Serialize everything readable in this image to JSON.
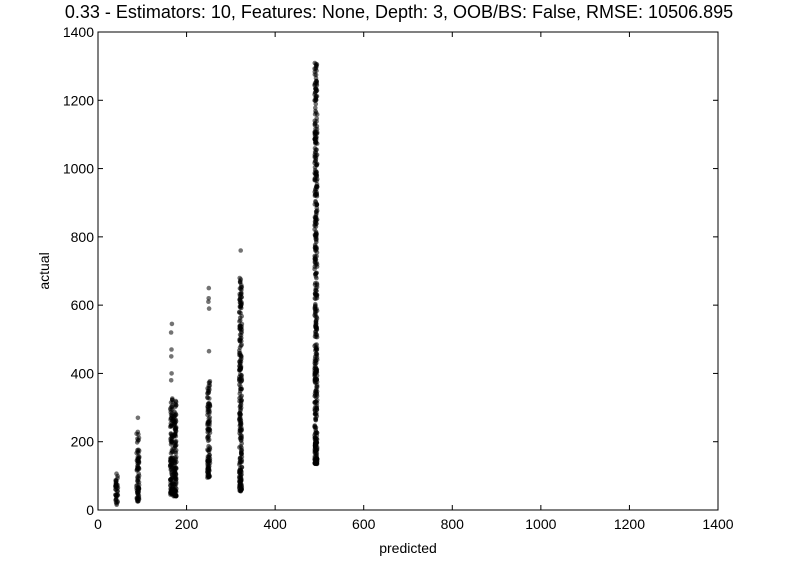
{
  "chart_data": {
    "type": "scatter",
    "title": "0.33 - Estimators: 10, Features: None, Depth: 3, OOB/BS: False, RMSE: 10506.895",
    "xlabel": "predicted",
    "ylabel": "actual",
    "xlim": [
      0,
      1400
    ],
    "ylim": [
      0,
      1400
    ],
    "x_ticks": [
      0,
      200,
      400,
      600,
      800,
      1000,
      1200,
      1400
    ],
    "y_ticks": [
      0,
      200,
      400,
      600,
      800,
      1000,
      1200,
      1400
    ],
    "grid": false,
    "marker_color": "#000000",
    "clusters": [
      {
        "x": 42,
        "y_min": 15,
        "y_max": 110,
        "outliers": []
      },
      {
        "x": 90,
        "y_min": 25,
        "y_max": 230,
        "outliers": [
          270
        ]
      },
      {
        "x": 166,
        "y_min": 45,
        "y_max": 330,
        "outliers": [
          380,
          400,
          450,
          470,
          520,
          545
        ]
      },
      {
        "x": 174,
        "y_min": 40,
        "y_max": 320,
        "outliers": []
      },
      {
        "x": 250,
        "y_min": 95,
        "y_max": 390,
        "outliers": [
          465,
          590,
          610,
          620,
          650
        ]
      },
      {
        "x": 322,
        "y_min": 55,
        "y_max": 680,
        "outliers": [
          760
        ]
      },
      {
        "x": 492,
        "y_min": 135,
        "y_max": 1310,
        "outliers": []
      }
    ]
  }
}
